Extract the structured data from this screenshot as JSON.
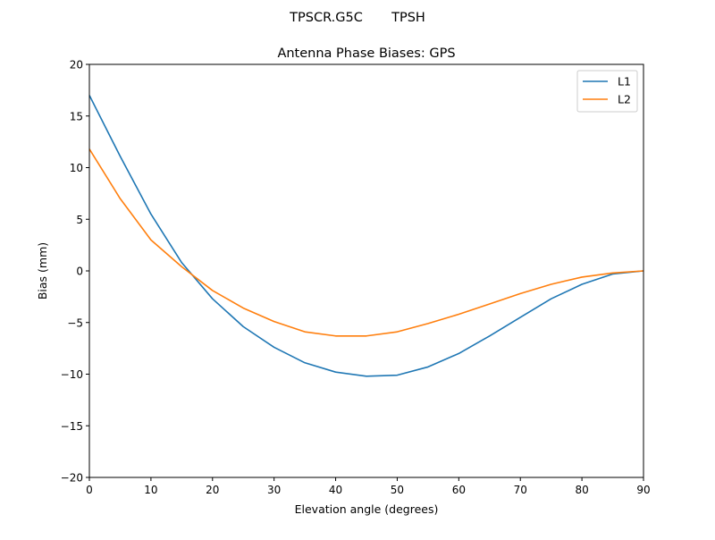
{
  "suptitle": "TPSCR.G5C       TPSH",
  "chart_data": {
    "type": "line",
    "title": "Antenna Phase Biases: GPS",
    "xlabel": "Elevation angle (degrees)",
    "ylabel": "Bias (mm)",
    "xlim": [
      0,
      90
    ],
    "ylim": [
      -20,
      20
    ],
    "xticks": [
      0,
      10,
      20,
      30,
      40,
      50,
      60,
      70,
      80,
      90
    ],
    "yticks": [
      -20,
      -15,
      -10,
      -5,
      0,
      5,
      10,
      15,
      20
    ],
    "ytick_labels": [
      "−20",
      "−15",
      "−10",
      "−5",
      "0",
      "5",
      "10",
      "15",
      "20"
    ],
    "grid": false,
    "legend_position": "top-right",
    "x": [
      0,
      5,
      10,
      15,
      20,
      25,
      30,
      35,
      40,
      45,
      50,
      55,
      60,
      65,
      70,
      75,
      80,
      85,
      90
    ],
    "series": [
      {
        "name": "L1",
        "color": "#1f77b4",
        "values": [
          17.0,
          11.1,
          5.5,
          0.8,
          -2.7,
          -5.4,
          -7.4,
          -8.9,
          -9.8,
          -10.2,
          -10.1,
          -9.3,
          -8.0,
          -6.3,
          -4.5,
          -2.7,
          -1.3,
          -0.3,
          0.0
        ]
      },
      {
        "name": "L2",
        "color": "#ff7f0e",
        "values": [
          11.8,
          7.0,
          3.0,
          0.4,
          -1.9,
          -3.6,
          -4.9,
          -5.9,
          -6.3,
          -6.3,
          -5.9,
          -5.1,
          -4.2,
          -3.2,
          -2.2,
          -1.3,
          -0.6,
          -0.2,
          0.0
        ]
      }
    ]
  }
}
